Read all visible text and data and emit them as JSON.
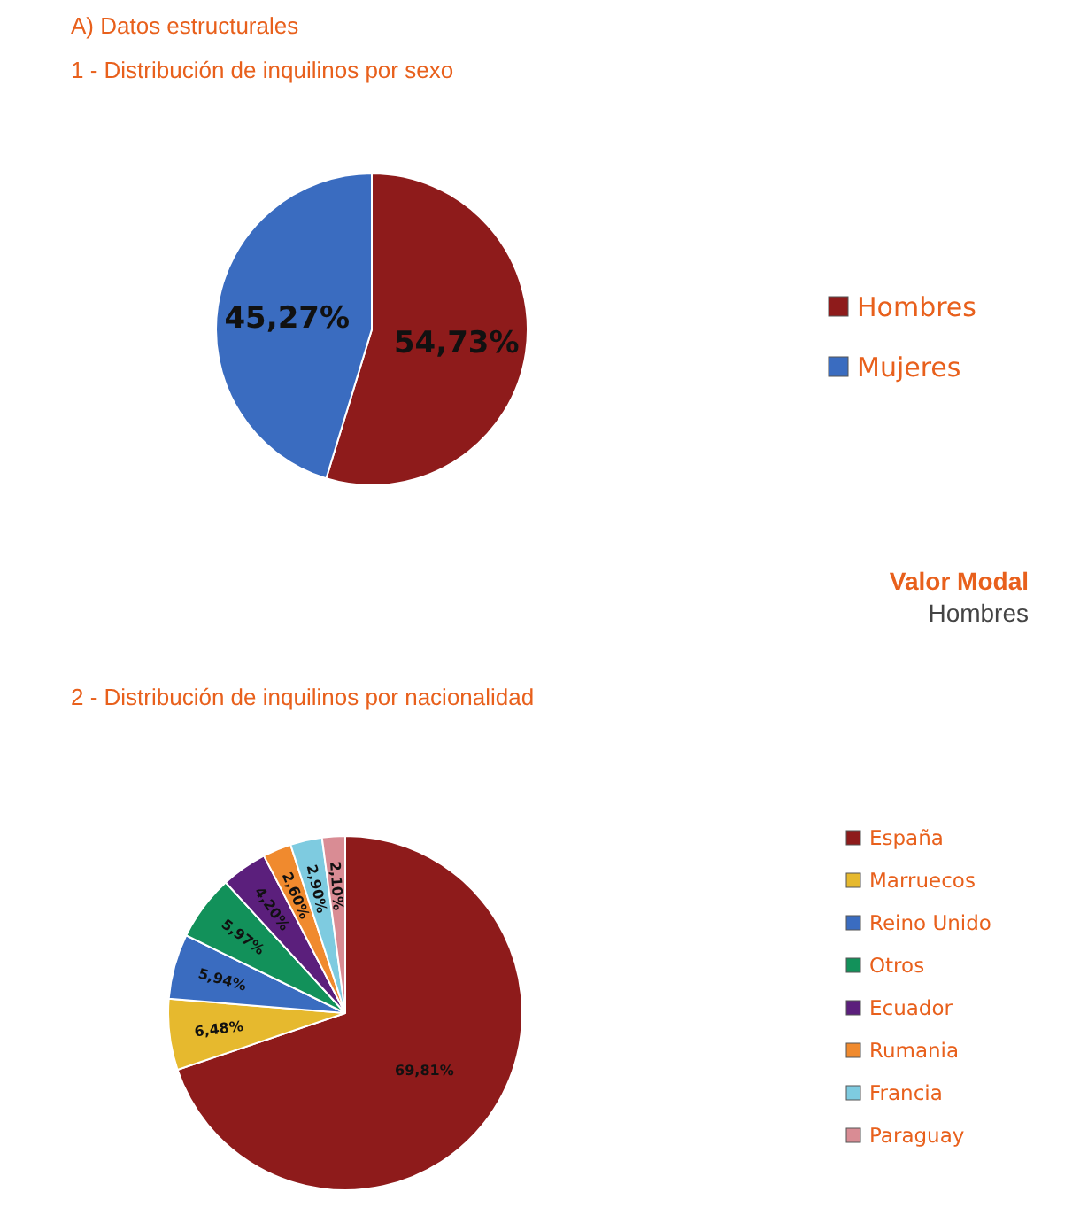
{
  "chart_data": [
    {
      "type": "pie",
      "title": "A) Datos estructurales",
      "subtitle": "1 - Distribución de inquilinos por sexo",
      "categories": [
        "Hombres",
        "Mujeres"
      ],
      "values": [
        54.73,
        45.27
      ],
      "value_labels": [
        "54,73%",
        "45,27%"
      ],
      "colors": [
        "#8e1b1b",
        "#3a6cc0"
      ],
      "legend": "right",
      "annotations": [
        "Valor Modal",
        "Hombres"
      ]
    },
    {
      "type": "pie",
      "title": "2 - Distribución de inquilinos por nacionalidad",
      "categories": [
        "España",
        "Marruecos",
        "Reino Unido",
        "Otros",
        "Ecuador",
        "Rumania",
        "Francia",
        "Paraguay"
      ],
      "values": [
        69.81,
        6.48,
        5.94,
        5.97,
        4.2,
        2.6,
        2.9,
        2.1
      ],
      "value_labels": [
        "69,81%",
        "6,48%",
        "5,94%",
        "5,97%",
        "4,20%",
        "2,60%",
        "2,90%",
        "2,10%"
      ],
      "colors": [
        "#8e1b1b",
        "#e6b92e",
        "#3a6cc0",
        "#12915a",
        "#5b1f7c",
        "#f08a2e",
        "#7ecbe0",
        "#d98c94"
      ],
      "legend": "right"
    }
  ]
}
